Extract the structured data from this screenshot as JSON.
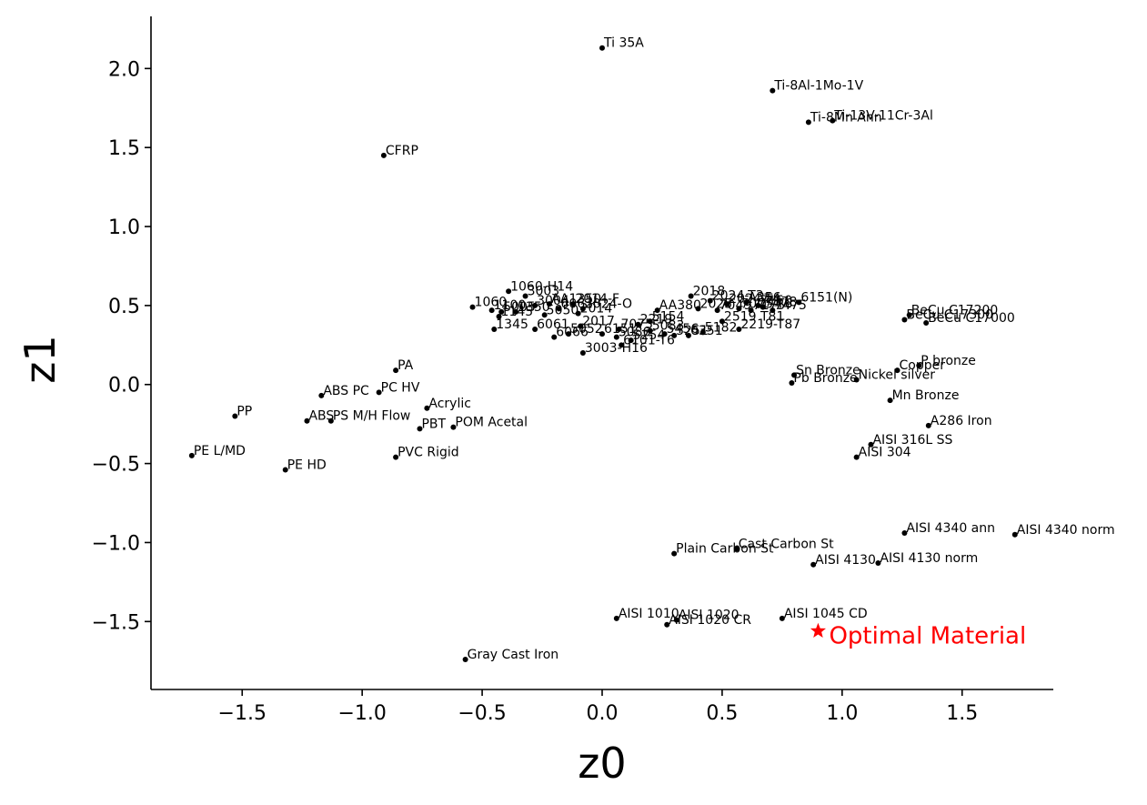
{
  "chart_data": {
    "type": "scatter",
    "xlabel": "z0",
    "ylabel": "z1",
    "xlim": [
      -1.88,
      1.88
    ],
    "ylim": [
      -1.93,
      2.33
    ],
    "xticks": [
      -1.5,
      -1.0,
      -0.5,
      0.0,
      0.5,
      1.0,
      1.5
    ],
    "yticks": [
      -1.5,
      -1.0,
      -0.5,
      0.0,
      0.5,
      1.0,
      1.5,
      2.0
    ],
    "xtick_labels": [
      "−1.5",
      "−1.0",
      "−0.5",
      "0.0",
      "0.5",
      "1.0",
      "1.5"
    ],
    "ytick_labels": [
      "−1.5",
      "−1.0",
      "−0.5",
      "0.0",
      "0.5",
      "1.0",
      "1.5",
      "2.0"
    ],
    "point_color": "#000000",
    "optimal_color": "#ff0000",
    "points": [
      {
        "label": "Ti 35A",
        "x": 0.0,
        "y": 2.13
      },
      {
        "label": "Ti-8Al-1Mo-1V",
        "x": 0.71,
        "y": 1.86
      },
      {
        "label": "Ti-8Mn Ann",
        "x": 0.86,
        "y": 1.66
      },
      {
        "label": "Ti-13V-11Cr-3Al",
        "x": 0.96,
        "y": 1.67
      },
      {
        "label": "CFRP",
        "x": -0.91,
        "y": 1.45
      },
      {
        "label": "1060-H14",
        "x": -0.39,
        "y": 0.59
      },
      {
        "label": "3003",
        "x": -0.32,
        "y": 0.56
      },
      {
        "label": "1060",
        "x": -0.54,
        "y": 0.49
      },
      {
        "label": "1100",
        "x": -0.46,
        "y": 0.47
      },
      {
        "label": "5005",
        "x": -0.42,
        "y": 0.46
      },
      {
        "label": "1350",
        "x": -0.36,
        "y": 0.46
      },
      {
        "label": "3004",
        "x": -0.28,
        "y": 0.5
      },
      {
        "label": "AA1350",
        "x": -0.22,
        "y": 0.51
      },
      {
        "label": "6063",
        "x": -0.18,
        "y": 0.48
      },
      {
        "label": "2014-F",
        "x": -0.12,
        "y": 0.51
      },
      {
        "label": "2024-O",
        "x": -0.08,
        "y": 0.48
      },
      {
        "label": "2014",
        "x": -0.1,
        "y": 0.45
      },
      {
        "label": "5050",
        "x": -0.24,
        "y": 0.44
      },
      {
        "label": "1145",
        "x": -0.43,
        "y": 0.43
      },
      {
        "label": "1345",
        "x": -0.45,
        "y": 0.35
      },
      {
        "label": "6061",
        "x": -0.28,
        "y": 0.35
      },
      {
        "label": "6066",
        "x": -0.2,
        "y": 0.3
      },
      {
        "label": "5052",
        "x": -0.14,
        "y": 0.32
      },
      {
        "label": "2017",
        "x": -0.09,
        "y": 0.37
      },
      {
        "label": "3003-H16",
        "x": -0.08,
        "y": 0.2
      },
      {
        "label": "6151",
        "x": 0.0,
        "y": 0.32
      },
      {
        "label": "7075",
        "x": 0.07,
        "y": 0.35
      },
      {
        "label": "2219",
        "x": 0.15,
        "y": 0.38
      },
      {
        "label": "5083",
        "x": 0.2,
        "y": 0.34
      },
      {
        "label": "5456",
        "x": 0.26,
        "y": 0.32
      },
      {
        "label": "5154",
        "x": 0.2,
        "y": 0.4
      },
      {
        "label": "5086",
        "x": 0.06,
        "y": 0.3
      },
      {
        "label": "5254",
        "x": 0.12,
        "y": 0.28
      },
      {
        "label": "6101-T6",
        "x": 0.08,
        "y": 0.25
      },
      {
        "label": "AA380",
        "x": 0.23,
        "y": 0.47
      },
      {
        "label": "2018",
        "x": 0.37,
        "y": 0.56
      },
      {
        "label": "2024-T3",
        "x": 0.45,
        "y": 0.53
      },
      {
        "label": "2024-T4",
        "x": 0.52,
        "y": 0.51
      },
      {
        "label": "2025",
        "x": 0.4,
        "y": 0.48
      },
      {
        "label": "7049",
        "x": 0.48,
        "y": 0.47
      },
      {
        "label": "7075-T6",
        "x": 0.57,
        "y": 0.48
      },
      {
        "label": "7175",
        "x": 0.62,
        "y": 0.47
      },
      {
        "label": "7178",
        "x": 0.67,
        "y": 0.49
      },
      {
        "label": "7475",
        "x": 0.71,
        "y": 0.47
      },
      {
        "label": "A356",
        "x": 0.6,
        "y": 0.52
      },
      {
        "label": "7150",
        "x": 0.65,
        "y": 0.5
      },
      {
        "label": "6151(N)",
        "x": 0.82,
        "y": 0.52
      },
      {
        "label": "2519 T81",
        "x": 0.5,
        "y": 0.4
      },
      {
        "label": "2219-T87",
        "x": 0.57,
        "y": 0.35
      },
      {
        "label": "5182",
        "x": 0.42,
        "y": 0.33
      },
      {
        "label": "5251",
        "x": 0.3,
        "y": 0.31
      },
      {
        "label": "6351",
        "x": 0.36,
        "y": 0.31
      },
      {
        "label": "Sn Bronze",
        "x": 0.8,
        "y": 0.06
      },
      {
        "label": "Pb Bronze",
        "x": 0.79,
        "y": 0.01
      },
      {
        "label": "Nickel silver",
        "x": 1.06,
        "y": 0.03
      },
      {
        "label": "Copper",
        "x": 1.23,
        "y": 0.09
      },
      {
        "label": "P bronze",
        "x": 1.32,
        "y": 0.12
      },
      {
        "label": "BeCu C17200",
        "x": 1.28,
        "y": 0.44
      },
      {
        "label": "BeCu C17300",
        "x": 1.26,
        "y": 0.41
      },
      {
        "label": "BeCu C17000",
        "x": 1.35,
        "y": 0.39
      },
      {
        "label": "Mn Bronze",
        "x": 1.2,
        "y": -0.1
      },
      {
        "label": "A286 Iron",
        "x": 1.36,
        "y": -0.26
      },
      {
        "label": "AISI 316L SS",
        "x": 1.12,
        "y": -0.38
      },
      {
        "label": "AISI 304",
        "x": 1.06,
        "y": -0.46
      },
      {
        "label": "AISI 4340 ann",
        "x": 1.26,
        "y": -0.94
      },
      {
        "label": "AISI 4340 norm",
        "x": 1.72,
        "y": -0.95
      },
      {
        "label": "Cast Carbon St",
        "x": 0.56,
        "y": -1.04
      },
      {
        "label": "Plain Carbon St",
        "x": 0.3,
        "y": -1.07
      },
      {
        "label": "AISI 4130",
        "x": 0.88,
        "y": -1.14
      },
      {
        "label": "AISI 4130 norm",
        "x": 1.15,
        "y": -1.13
      },
      {
        "label": "AISI 1010",
        "x": 0.06,
        "y": -1.48
      },
      {
        "label": "AISI 1020",
        "x": 0.31,
        "y": -1.49
      },
      {
        "label": "AISI 1020 CR",
        "x": 0.27,
        "y": -1.52
      },
      {
        "label": "AISI 1045 CD",
        "x": 0.75,
        "y": -1.48
      },
      {
        "label": "Gray Cast Iron",
        "x": -0.57,
        "y": -1.74
      },
      {
        "label": "PA",
        "x": -0.86,
        "y": 0.09
      },
      {
        "label": "PC HV",
        "x": -0.93,
        "y": -0.05
      },
      {
        "label": "ABS PC",
        "x": -1.17,
        "y": -0.07
      },
      {
        "label": "Acrylic",
        "x": -0.73,
        "y": -0.15
      },
      {
        "label": "PP",
        "x": -1.53,
        "y": -0.2
      },
      {
        "label": "ABS",
        "x": -1.23,
        "y": -0.23
      },
      {
        "label": "PS M/H Flow",
        "x": -1.13,
        "y": -0.23
      },
      {
        "label": "PBT",
        "x": -0.76,
        "y": -0.28
      },
      {
        "label": "POM Acetal",
        "x": -0.62,
        "y": -0.27
      },
      {
        "label": "PE L/MD",
        "x": -1.71,
        "y": -0.45
      },
      {
        "label": "PVC Rigid",
        "x": -0.86,
        "y": -0.46
      },
      {
        "label": "PE HD",
        "x": -1.32,
        "y": -0.54
      }
    ],
    "optimal": {
      "label": "Optimal Material",
      "x": 0.9,
      "y": -1.56
    }
  }
}
